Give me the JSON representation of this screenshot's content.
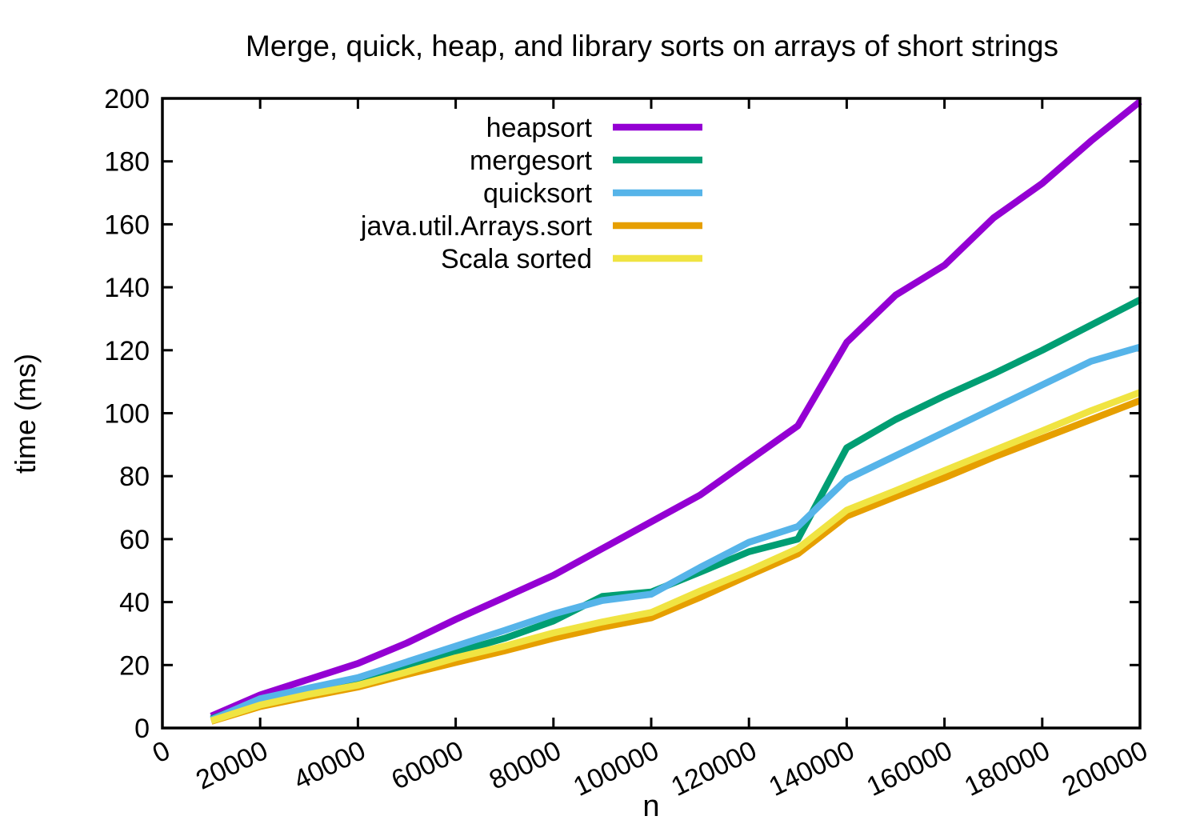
{
  "chart_data": {
    "type": "line",
    "title": "Merge, quick, heap, and library sorts on arrays of short strings",
    "xlabel": "n",
    "ylabel": "time (ms)",
    "xlim": [
      0,
      200000
    ],
    "ylim": [
      0,
      200
    ],
    "grid": false,
    "legend_position": "inside-top-center",
    "background_color": "#ffffff",
    "axis_color": "#000000",
    "xtick_values": [
      0,
      20000,
      40000,
      60000,
      80000,
      100000,
      120000,
      140000,
      160000,
      180000,
      200000
    ],
    "xtick_labels": [
      "0",
      "20000",
      "40000",
      "60000",
      "80000",
      "100000",
      "120000",
      "140000",
      "160000",
      "180000",
      "200000"
    ],
    "ytick_values": [
      0,
      20,
      40,
      60,
      80,
      100,
      120,
      140,
      160,
      180,
      200
    ],
    "ytick_labels": [
      "0",
      "20",
      "40",
      "60",
      "80",
      "100",
      "120",
      "140",
      "160",
      "180",
      "200"
    ],
    "x": [
      10000,
      20000,
      30000,
      40000,
      50000,
      60000,
      70000,
      80000,
      90000,
      100000,
      110000,
      120000,
      130000,
      140000,
      150000,
      160000,
      170000,
      180000,
      190000,
      200000
    ],
    "series": [
      {
        "name": "heapsort",
        "color": "#9400d3",
        "values": [
          3.8,
          10.5,
          15.5,
          20.5,
          27,
          34.5,
          41.5,
          48.5,
          57,
          65.5,
          74,
          85,
          96,
          122.5,
          137.5,
          147,
          162,
          173,
          186.5,
          199
        ]
      },
      {
        "name": "mergesort",
        "color": "#009e73",
        "values": [
          2.9,
          8.8,
          12,
          15.2,
          19.5,
          24,
          28.5,
          34,
          41.8,
          43.2,
          49.5,
          56,
          60,
          89,
          98,
          105.5,
          112.5,
          120,
          128,
          136
        ]
      },
      {
        "name": "quicksort",
        "color": "#56b4e9",
        "values": [
          2.6,
          9.3,
          12.7,
          16,
          21,
          26,
          31,
          36.2,
          40.5,
          42.5,
          51,
          59,
          64,
          79,
          86.5,
          94,
          101.5,
          109,
          116.5,
          121
        ]
      },
      {
        "name": "java.util.Arrays.sort",
        "color": "#e69f00",
        "values": [
          2.1,
          6.8,
          10,
          13,
          17,
          20.8,
          24.5,
          28.5,
          32,
          35,
          41.5,
          48.5,
          55.3,
          67.3,
          73.5,
          79.5,
          86,
          92,
          98,
          104
        ]
      },
      {
        "name": "Scala sorted",
        "color": "#f0e442",
        "values": [
          2.3,
          7.3,
          10.7,
          13.6,
          17.8,
          22.3,
          26,
          30.2,
          33.7,
          36.7,
          43.5,
          50,
          57,
          69.2,
          75.4,
          81.8,
          88.1,
          94.4,
          100.8,
          106.6
        ]
      }
    ]
  }
}
